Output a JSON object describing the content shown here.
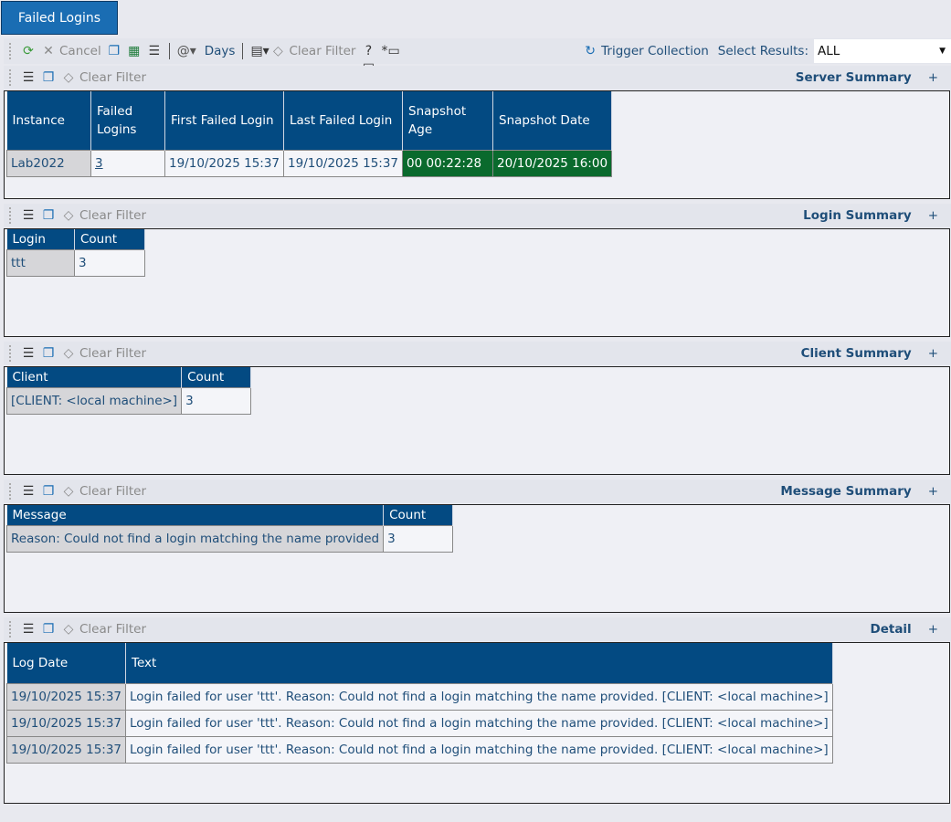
{
  "tab": {
    "label": "Failed Logins"
  },
  "toolbar": {
    "cancel": "Cancel",
    "days": "Days",
    "clear_filter": "Clear Filter",
    "trigger_collection": "Trigger Collection",
    "select_results_label": "Select Results:",
    "select_results_value": "ALL"
  },
  "sections": [
    {
      "title": "Server Summary",
      "clear_filter": "Clear Filter",
      "plus": "+",
      "columns": [
        "Instance",
        "Failed Logins",
        "First Failed Login",
        "Last Failed Login",
        "Snapshot Age",
        "Snapshot Date"
      ],
      "rows": [
        [
          "Lab2022",
          "3",
          "19/10/2025 15:37",
          "19/10/2025 15:37",
          "00 00:22:28",
          "20/10/2025 16:00"
        ]
      ]
    },
    {
      "title": "Login Summary",
      "clear_filter": "Clear Filter",
      "plus": "+",
      "columns": [
        "Login",
        "Count"
      ],
      "rows": [
        [
          "ttt",
          "3"
        ]
      ]
    },
    {
      "title": "Client Summary",
      "clear_filter": "Clear Filter",
      "plus": "+",
      "columns": [
        "Client",
        "Count"
      ],
      "rows": [
        [
          "[CLIENT: <local machine>]",
          "3"
        ]
      ]
    },
    {
      "title": "Message Summary",
      "clear_filter": "Clear Filter",
      "plus": "+",
      "columns": [
        "Message",
        "Count"
      ],
      "rows": [
        [
          "Reason: Could not find a login matching the name provided",
          "3"
        ]
      ]
    },
    {
      "title": "Detail",
      "clear_filter": "Clear Filter",
      "plus": "+",
      "columns": [
        "Log Date",
        "Text"
      ],
      "rows": [
        [
          "19/10/2025 15:37",
          "Login failed for user 'ttt'. Reason: Could not find a login matching the name provided. [CLIENT: <local machine>]"
        ],
        [
          "19/10/2025 15:37",
          "Login failed for user 'ttt'. Reason: Could not find a login matching the name provided. [CLIENT: <local machine>]"
        ],
        [
          "19/10/2025 15:37",
          "Login failed for user 'ttt'. Reason: Could not find a login matching the name provided. [CLIENT: <local machine>]"
        ]
      ]
    }
  ],
  "colors": {
    "header": "#034a82",
    "tab": "#1a6db3",
    "snapshot_ok": "#0a6a2d"
  }
}
